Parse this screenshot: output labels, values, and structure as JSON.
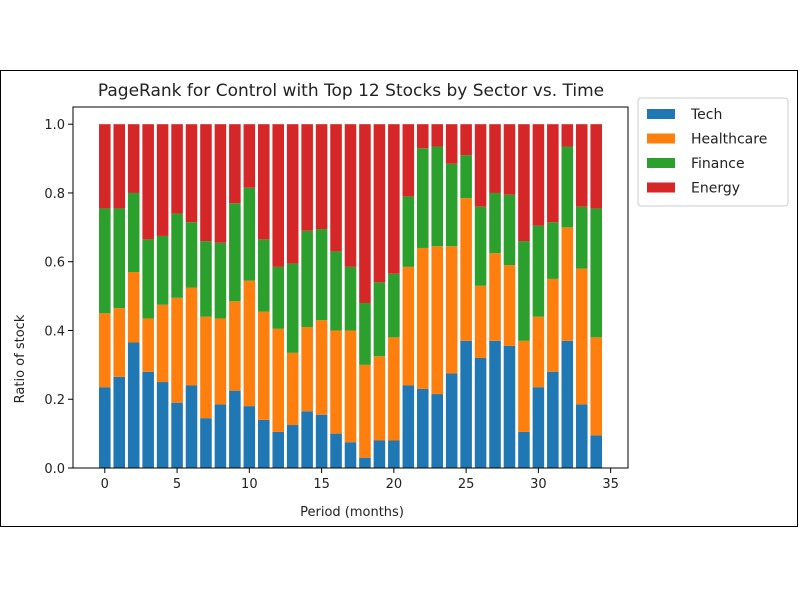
{
  "chart_data": {
    "type": "bar",
    "stacked": true,
    "title": "PageRank for Control with Top 12 Stocks by Sector vs. Time",
    "xlabel": "Period (months)",
    "ylabel": "Ratio of stock",
    "xlim": [
      -2.2,
      36.2
    ],
    "ylim": [
      0,
      1.05
    ],
    "xticks": [
      0,
      5,
      10,
      15,
      20,
      25,
      30,
      35
    ],
    "yticks": [
      0.0,
      0.2,
      0.4,
      0.6,
      0.8,
      1.0
    ],
    "ytick_labels": [
      "0.0",
      "0.2",
      "0.4",
      "0.6",
      "0.8",
      "1.0"
    ],
    "grid": false,
    "legend_position": "outside-top-right",
    "x": [
      0,
      1,
      2,
      3,
      4,
      5,
      6,
      7,
      8,
      9,
      10,
      11,
      12,
      13,
      14,
      15,
      16,
      17,
      18,
      19,
      20,
      21,
      22,
      23,
      24,
      25,
      26,
      27,
      28,
      29,
      30,
      31,
      32,
      33,
      34
    ],
    "series": [
      {
        "name": "Tech",
        "color": "#1f77b4",
        "values": [
          0.235,
          0.265,
          0.365,
          0.28,
          0.25,
          0.19,
          0.24,
          0.145,
          0.185,
          0.225,
          0.18,
          0.14,
          0.105,
          0.125,
          0.165,
          0.155,
          0.1,
          0.075,
          0.03,
          0.08,
          0.08,
          0.24,
          0.23,
          0.215,
          0.275,
          0.37,
          0.32,
          0.37,
          0.355,
          0.105,
          0.235,
          0.28,
          0.37,
          0.185,
          0.095
        ]
      },
      {
        "name": "Healthcare",
        "color": "#ff7f0e",
        "values": [
          0.215,
          0.2,
          0.205,
          0.155,
          0.225,
          0.305,
          0.285,
          0.295,
          0.25,
          0.26,
          0.365,
          0.315,
          0.3,
          0.21,
          0.245,
          0.275,
          0.3,
          0.325,
          0.27,
          0.245,
          0.3,
          0.345,
          0.41,
          0.43,
          0.37,
          0.415,
          0.21,
          0.255,
          0.235,
          0.265,
          0.205,
          0.27,
          0.33,
          0.395,
          0.285
        ]
      },
      {
        "name": "Finance",
        "color": "#2ca02c",
        "values": [
          0.305,
          0.29,
          0.23,
          0.23,
          0.2,
          0.245,
          0.19,
          0.22,
          0.22,
          0.285,
          0.27,
          0.21,
          0.18,
          0.26,
          0.28,
          0.265,
          0.23,
          0.185,
          0.18,
          0.215,
          0.185,
          0.205,
          0.29,
          0.29,
          0.24,
          0.125,
          0.23,
          0.175,
          0.205,
          0.29,
          0.265,
          0.165,
          0.235,
          0.18,
          0.375
        ]
      },
      {
        "name": "Energy",
        "color": "#d62728",
        "values": [
          0.245,
          0.245,
          0.2,
          0.335,
          0.325,
          0.26,
          0.285,
          0.34,
          0.345,
          0.23,
          0.185,
          0.335,
          0.415,
          0.405,
          0.31,
          0.305,
          0.37,
          0.415,
          0.52,
          0.46,
          0.435,
          0.21,
          0.07,
          0.065,
          0.115,
          0.09,
          0.24,
          0.2,
          0.205,
          0.34,
          0.295,
          0.285,
          0.065,
          0.24,
          0.245
        ]
      }
    ]
  }
}
